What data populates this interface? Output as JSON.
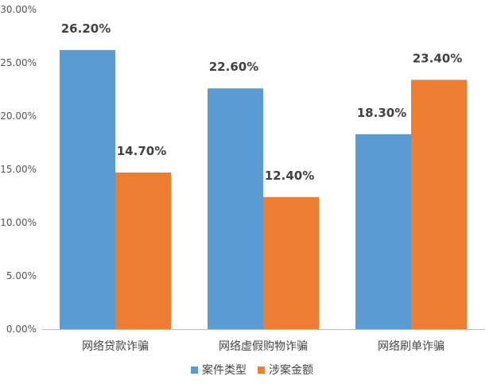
{
  "chart_data": {
    "type": "bar",
    "categories": [
      "网络贷款诈骗",
      "网络虚假购物诈骗",
      "网络刷单诈骗"
    ],
    "series": [
      {
        "name": "案件类型",
        "color": "#5B9BD5",
        "values": [
          26.2,
          22.6,
          18.3
        ],
        "labels": [
          "26.20%",
          "22.60%",
          "18.30%"
        ]
      },
      {
        "name": "涉案金额",
        "color": "#ED7D31",
        "values": [
          14.7,
          12.4,
          23.4
        ],
        "labels": [
          "14.70%",
          "12.40%",
          "23.40%"
        ]
      }
    ],
    "ylim": [
      0,
      30
    ],
    "y_ticks": [
      0,
      5,
      10,
      15,
      20,
      25,
      30
    ],
    "y_tick_labels": [
      "0.00%",
      "5.00%",
      "10.00%",
      "15.00%",
      "20.00%",
      "25.00%",
      "30.00%"
    ],
    "grid": false,
    "legend_position": "bottom"
  }
}
